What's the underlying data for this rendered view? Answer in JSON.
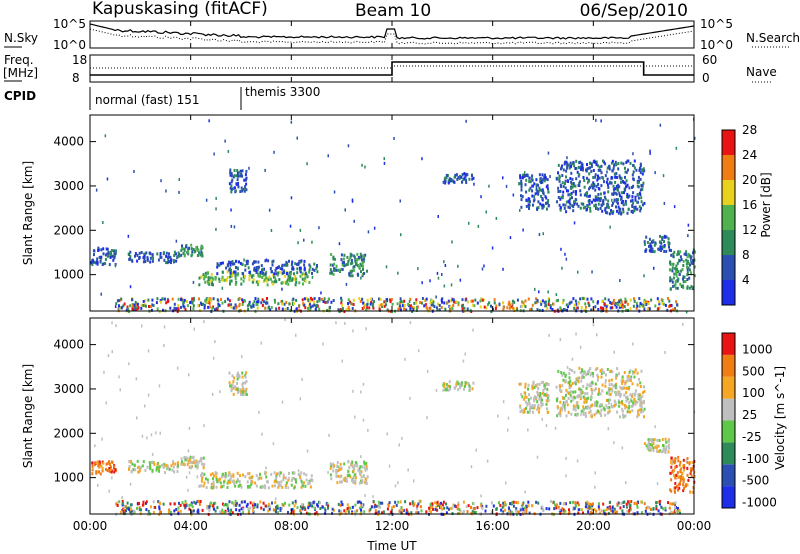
{
  "header": {
    "station": "Kapuskasing (fitACF)",
    "beam": "Beam 10",
    "date": "06/Sep/2010"
  },
  "noise_panel": {
    "left_label": "N.Sky",
    "left_ticks": [
      "10^5",
      "10^0"
    ],
    "right_label": "N.Search",
    "right_ticks": [
      "10^5",
      "10^0"
    ]
  },
  "freq_panel": {
    "left_label_1": "Freq.",
    "left_label_2": "[MHz]",
    "left_ticks": [
      "18",
      "8"
    ],
    "right_label": "Nave",
    "right_ticks": [
      "60",
      "0"
    ]
  },
  "cpid": {
    "label": "CPID",
    "modes": [
      {
        "name": "normal (fast) 151",
        "start_h": 0
      },
      {
        "name": "themis 3300",
        "start_h": 6
      }
    ]
  },
  "x_axis": {
    "label": "Time UT",
    "ticks": [
      "00:00",
      "04:00",
      "08:00",
      "12:00",
      "16:00",
      "20:00",
      "00:00"
    ]
  },
  "chart_data": [
    {
      "type": "heatmap",
      "name": "power",
      "ylabel": "Slant Range [km]",
      "ylim": [
        180,
        4600
      ],
      "yticks": [
        1000,
        2000,
        3000,
        4000
      ],
      "xlabel": "Time UT",
      "xlim_hours": [
        0,
        24
      ],
      "colorbar_label": "Power [dB]",
      "colorbar_ticks": [
        "4",
        "8",
        "12",
        "16",
        "20",
        "24",
        "28"
      ],
      "colorbar_colors": [
        "#1e2ee8",
        "#2b4fb2",
        "#2f8a5a",
        "#4fb24f",
        "#e8d21e",
        "#f07d14",
        "#e81414"
      ],
      "regions": [
        {
          "t": [
            0.0,
            1.0
          ],
          "r": [
            1250,
            1650
          ],
          "level": 1
        },
        {
          "t": [
            1.5,
            3.5
          ],
          "r": [
            1300,
            1550
          ],
          "level": 1
        },
        {
          "t": [
            3.5,
            4.5
          ],
          "r": [
            1450,
            1700
          ],
          "level": 2
        },
        {
          "t": [
            4.3,
            8.8
          ],
          "r": [
            800,
            1100
          ],
          "level": 3
        },
        {
          "t": [
            5.0,
            9.0
          ],
          "r": [
            1050,
            1350
          ],
          "level": 1
        },
        {
          "t": [
            5.5,
            6.2
          ],
          "r": [
            2900,
            3400
          ],
          "level": 1
        },
        {
          "t": [
            9.5,
            11.0
          ],
          "r": [
            1000,
            1500
          ],
          "level": 2
        },
        {
          "t": [
            14.0,
            15.2
          ],
          "r": [
            3100,
            3300
          ],
          "level": 1
        },
        {
          "t": [
            17.0,
            18.2
          ],
          "r": [
            2500,
            3300
          ],
          "level": 1
        },
        {
          "t": [
            18.5,
            22.0
          ],
          "r": [
            2400,
            3600
          ],
          "level": 1
        },
        {
          "t": [
            22.0,
            23.0
          ],
          "r": [
            1550,
            1900
          ],
          "level": 1
        },
        {
          "t": [
            23.0,
            24.0
          ],
          "r": [
            700,
            1600
          ],
          "level": 2
        },
        {
          "t": [
            1.0,
            23.5
          ],
          "r": [
            200,
            500
          ],
          "level": 4
        }
      ]
    },
    {
      "type": "heatmap",
      "name": "velocity",
      "ylabel": "Slant Range [km]",
      "ylim": [
        180,
        4600
      ],
      "yticks": [
        1000,
        2000,
        3000,
        4000
      ],
      "xlabel": "Time UT",
      "xlim_hours": [
        0,
        24
      ],
      "colorbar_label": "Velocity [m s^-1]",
      "colorbar_ticks": [
        "1000",
        "500",
        "100",
        "25",
        "-25",
        "-100",
        "-500",
        "-1000"
      ],
      "colorbar_colors": [
        "#1e2ee8",
        "#2b4fb2",
        "#2f8a5a",
        "#5fc84a",
        "#bfbfbf",
        "#f5a623",
        "#f07d14",
        "#e81414"
      ],
      "regions": [
        {
          "t": [
            0.0,
            1.0
          ],
          "r": [
            1100,
            1400
          ],
          "level": 6
        },
        {
          "t": [
            1.5,
            3.5
          ],
          "r": [
            1150,
            1400
          ],
          "level": 4
        },
        {
          "t": [
            3.5,
            4.5
          ],
          "r": [
            1250,
            1500
          ],
          "level": 4
        },
        {
          "t": [
            4.3,
            8.8
          ],
          "r": [
            800,
            1150
          ],
          "level": 4
        },
        {
          "t": [
            5.5,
            6.2
          ],
          "r": [
            2900,
            3400
          ],
          "level": 4
        },
        {
          "t": [
            9.5,
            11.0
          ],
          "r": [
            900,
            1400
          ],
          "level": 4
        },
        {
          "t": [
            14.0,
            15.2
          ],
          "r": [
            3000,
            3200
          ],
          "level": 4
        },
        {
          "t": [
            17.0,
            18.2
          ],
          "r": [
            2500,
            3200
          ],
          "level": 4
        },
        {
          "t": [
            18.5,
            22.0
          ],
          "r": [
            2400,
            3500
          ],
          "level": 4
        },
        {
          "t": [
            22.0,
            23.0
          ],
          "r": [
            1600,
            1900
          ],
          "level": 4
        },
        {
          "t": [
            23.0,
            24.0
          ],
          "r": [
            700,
            1500
          ],
          "level": 6
        },
        {
          "t": [
            1.0,
            23.5
          ],
          "r": [
            200,
            500
          ],
          "level": 5
        }
      ]
    }
  ]
}
